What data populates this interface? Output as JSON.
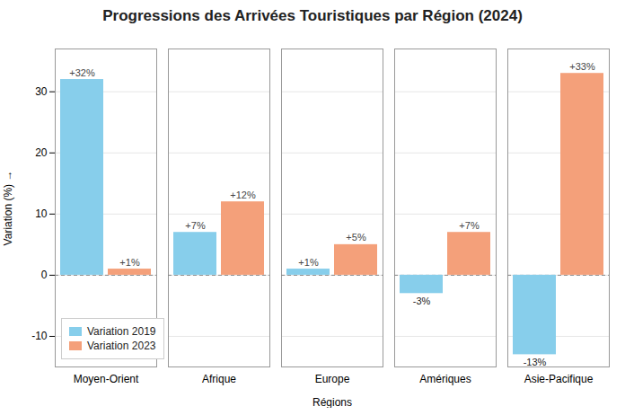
{
  "chart_data": {
    "type": "bar",
    "title": "Progressions des Arrivées Touristiques par Région (2024)",
    "xlabel": "Régions",
    "ylabel": "Variation (%)",
    "categories": [
      "Moyen-Orient",
      "Afrique",
      "Europe",
      "Amériques",
      "Asie-Pacifique"
    ],
    "series": [
      {
        "name": "Variation 2019",
        "color": "#87CEEB",
        "values": [
          32,
          7,
          1,
          -3,
          -13
        ],
        "value_labels": [
          "+32%",
          "+7%",
          "+1%",
          "-3%",
          "-13%"
        ]
      },
      {
        "name": "Variation 2023",
        "color": "#F4A07A",
        "values": [
          1,
          12,
          5,
          7,
          33
        ],
        "value_labels": [
          "+1%",
          "+12%",
          "+5%",
          "+7%",
          "+33%"
        ]
      }
    ],
    "ylim": [
      -15,
      37
    ],
    "yticks": [
      -10,
      0,
      10,
      20,
      30
    ],
    "grid": true,
    "legend": "lower left",
    "data_labels": true
  }
}
